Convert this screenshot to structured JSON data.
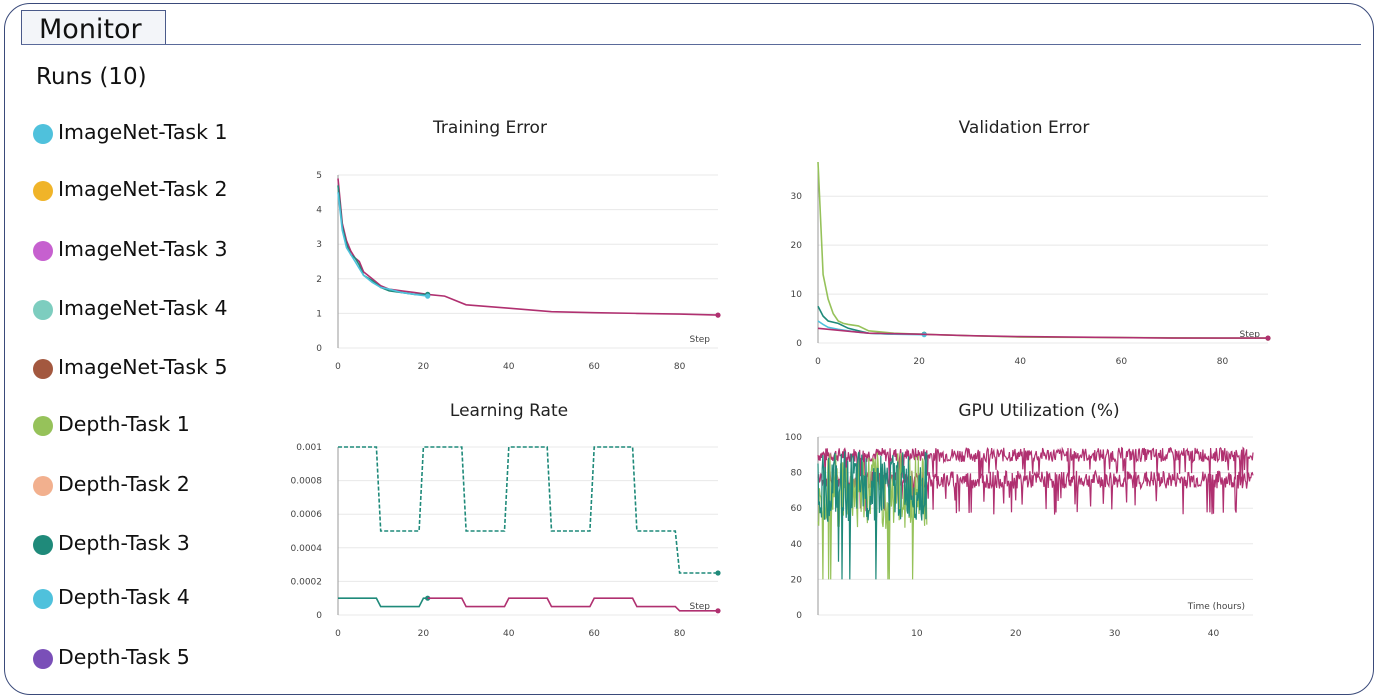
{
  "header": {
    "tab_label": "Monitor"
  },
  "runs": {
    "title": "Runs (10)",
    "items": [
      {
        "label": "ImageNet-Task 1",
        "color": "#4fc1dc"
      },
      {
        "label": "ImageNet-Task 2",
        "color": "#f0b429"
      },
      {
        "label": "ImageNet-Task 3",
        "color": "#c660cf"
      },
      {
        "label": "ImageNet-Task 4",
        "color": "#7dcdbf"
      },
      {
        "label": "ImageNet-Task 5",
        "color": "#a3583f"
      },
      {
        "label": "Depth-Task 1",
        "color": "#96c25a"
      },
      {
        "label": "Depth-Task 2",
        "color": "#f2b08e"
      },
      {
        "label": "Depth-Task 3",
        "color": "#1f8a7a"
      },
      {
        "label": "Depth-Task 4",
        "color": "#4fc1dc"
      },
      {
        "label": "Depth-Task 5",
        "color": "#7a4fb8"
      }
    ]
  },
  "chart_data": [
    {
      "type": "line",
      "title": "Training Error",
      "xlabel": "Step",
      "xlim": [
        0,
        89
      ],
      "ylim": [
        0,
        5
      ],
      "xticks": [
        0,
        20,
        40,
        60,
        80
      ],
      "yticks": [
        0,
        1,
        2,
        3,
        4,
        5
      ],
      "series": [
        {
          "color": "#b03070",
          "x": [
            0,
            1,
            2,
            3,
            4,
            5,
            6,
            8,
            10,
            12,
            15,
            18,
            21,
            25,
            30,
            40,
            50,
            60,
            70,
            80,
            89
          ],
          "y": [
            4.9,
            3.6,
            3.1,
            2.8,
            2.6,
            2.5,
            2.2,
            2.0,
            1.8,
            1.7,
            1.65,
            1.6,
            1.55,
            1.5,
            1.25,
            1.15,
            1.05,
            1.02,
            1.0,
            0.98,
            0.95
          ]
        },
        {
          "color": "#1f8a7a",
          "x": [
            0,
            1,
            2,
            3,
            4,
            5,
            6,
            8,
            10,
            12,
            15,
            18,
            21
          ],
          "y": [
            4.7,
            3.5,
            3.0,
            2.7,
            2.6,
            2.4,
            2.1,
            1.95,
            1.75,
            1.65,
            1.6,
            1.55,
            1.55
          ]
        },
        {
          "color": "#4fc1dc",
          "x": [
            0,
            1,
            2,
            3,
            4,
            5,
            6,
            8,
            10,
            12,
            15,
            18,
            21
          ],
          "y": [
            4.5,
            3.4,
            2.9,
            2.7,
            2.5,
            2.3,
            2.1,
            1.9,
            1.75,
            1.7,
            1.6,
            1.55,
            1.5
          ]
        }
      ]
    },
    {
      "type": "line",
      "title": "Validation Error",
      "xlabel": "Step",
      "xlim": [
        0,
        89
      ],
      "ylim": [
        0,
        37
      ],
      "xticks": [
        0,
        20,
        40,
        60,
        80
      ],
      "yticks": [
        0,
        10,
        20,
        30
      ],
      "series": [
        {
          "color": "#96c25a",
          "x": [
            0,
            1,
            2,
            3,
            4,
            5,
            6,
            8,
            10,
            15,
            20,
            30,
            40,
            60,
            80,
            89
          ],
          "y": [
            37,
            14,
            9,
            6,
            4.5,
            4,
            3.8,
            3.5,
            2.5,
            2.0,
            1.8,
            1.5,
            1.2,
            1.1,
            1.0,
            1.0
          ]
        },
        {
          "color": "#1f8a7a",
          "x": [
            0,
            1,
            2,
            4,
            6,
            8,
            10,
            15,
            21
          ],
          "y": [
            7.5,
            5.5,
            4.5,
            4.0,
            3.0,
            2.5,
            2.0,
            1.8,
            1.8
          ]
        },
        {
          "color": "#4fc1dc",
          "x": [
            0,
            1,
            2,
            4,
            6,
            8,
            10,
            15,
            21
          ],
          "y": [
            4.5,
            3.8,
            3.2,
            2.8,
            2.5,
            2.2,
            2.0,
            1.8,
            1.7
          ]
        },
        {
          "color": "#b03070",
          "x": [
            0,
            10,
            20,
            30,
            40,
            50,
            60,
            70,
            80,
            89
          ],
          "y": [
            3.0,
            2.0,
            1.8,
            1.5,
            1.3,
            1.2,
            1.1,
            1.0,
            1.0,
            1.0
          ]
        }
      ]
    },
    {
      "type": "line",
      "title": "Learning Rate",
      "xlabel": "Step",
      "xlim": [
        0,
        89
      ],
      "ylim": [
        0,
        0.001
      ],
      "xticks": [
        0,
        20,
        40,
        60,
        80
      ],
      "yticks": [
        0,
        0.0002,
        0.0004,
        0.0006,
        0.0008,
        0.001
      ],
      "yticklabels": [
        "0",
        "0.0002",
        "0.0004",
        "0.0006",
        "0.0008",
        "0.001"
      ],
      "series": [
        {
          "color": "#1f8a7a",
          "dashed": true,
          "x": [
            0,
            9,
            10,
            19,
            20,
            29,
            30,
            39,
            40,
            49,
            50,
            59,
            60,
            69,
            70,
            79,
            80,
            89
          ],
          "y": [
            0.001,
            0.001,
            0.0005,
            0.0005,
            0.001,
            0.001,
            0.0005,
            0.0005,
            0.001,
            0.001,
            0.0005,
            0.0005,
            0.001,
            0.001,
            0.0005,
            0.0005,
            0.00025,
            0.00025
          ]
        },
        {
          "color": "#1f8a7a",
          "x": [
            0,
            9,
            10,
            19,
            20,
            21
          ],
          "y": [
            0.0001,
            0.0001,
            5e-05,
            5e-05,
            0.0001,
            0.0001
          ]
        },
        {
          "color": "#b03070",
          "x": [
            21,
            29,
            30,
            39,
            40,
            49,
            50,
            59,
            60,
            69,
            70,
            79,
            80,
            89
          ],
          "y": [
            0.0001,
            0.0001,
            5e-05,
            5e-05,
            0.0001,
            0.0001,
            5e-05,
            5e-05,
            0.0001,
            0.0001,
            5e-05,
            5e-05,
            2.5e-05,
            2.5e-05
          ]
        }
      ]
    },
    {
      "type": "line",
      "title": "GPU Utilization (%)",
      "xlabel": "Time (hours)",
      "xlim": [
        0,
        44
      ],
      "ylim": [
        0,
        100
      ],
      "xticks": [
        10,
        20,
        30,
        40
      ],
      "yticks": [
        0,
        20,
        40,
        60,
        80,
        100
      ],
      "series": [
        {
          "color": "#b03070",
          "x_range": [
            0,
            44
          ],
          "y_mean": 90,
          "y_spread": 4
        },
        {
          "color": "#b03070",
          "x_range": [
            0,
            44
          ],
          "y_mean": 76,
          "y_spread": 5
        },
        {
          "color": "#96c25a",
          "x_range": [
            0,
            11
          ],
          "y_mean": 70,
          "y_spread": 22
        },
        {
          "color": "#1f8a7a",
          "x_range": [
            0,
            11
          ],
          "y_mean": 72,
          "y_spread": 20
        }
      ]
    }
  ]
}
